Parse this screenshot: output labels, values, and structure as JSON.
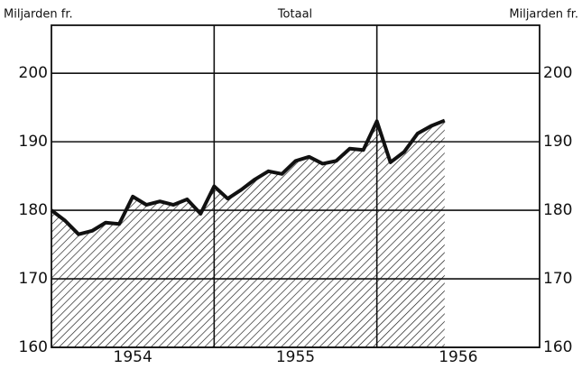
{
  "chart_data": {
    "type": "area",
    "title": "Totaal",
    "ylabel": "Miljarden fr.",
    "y2label": "Miljarden fr.",
    "x": [
      1954.0,
      1954.0833,
      1954.1667,
      1954.25,
      1954.3333,
      1954.4167,
      1954.5,
      1954.5833,
      1954.6667,
      1954.75,
      1954.8333,
      1954.9167,
      1955.0,
      1955.0833,
      1955.1667,
      1955.25,
      1955.3333,
      1955.4167,
      1955.5,
      1955.5833,
      1955.6667,
      1955.75,
      1955.8333,
      1955.9167,
      1956.0,
      1956.0833,
      1956.1667,
      1956.25,
      1956.3333,
      1956.4167
    ],
    "values": [
      180,
      178.5,
      176.5,
      177,
      178.2,
      178,
      182,
      180.8,
      181.3,
      180.8,
      181.6,
      179.5,
      183.5,
      181.7,
      183,
      184.5,
      185.7,
      185.3,
      187.2,
      187.8,
      186.8,
      187.2,
      189,
      188.8,
      193,
      187,
      188.5,
      191.2,
      192.3,
      193.1
    ],
    "color": "#111111",
    "fill": "hatch",
    "xlim": [
      1954,
      1957
    ],
    "xticks": [
      {
        "value": 1954.5,
        "label": "1954"
      },
      {
        "value": 1955.5,
        "label": "1955"
      },
      {
        "value": 1956.5,
        "label": "1956"
      }
    ],
    "xgrid": [
      1955,
      1956
    ],
    "ylim": [
      160,
      207
    ],
    "yticks": [
      160,
      170,
      180,
      190,
      200
    ],
    "grid": true
  }
}
